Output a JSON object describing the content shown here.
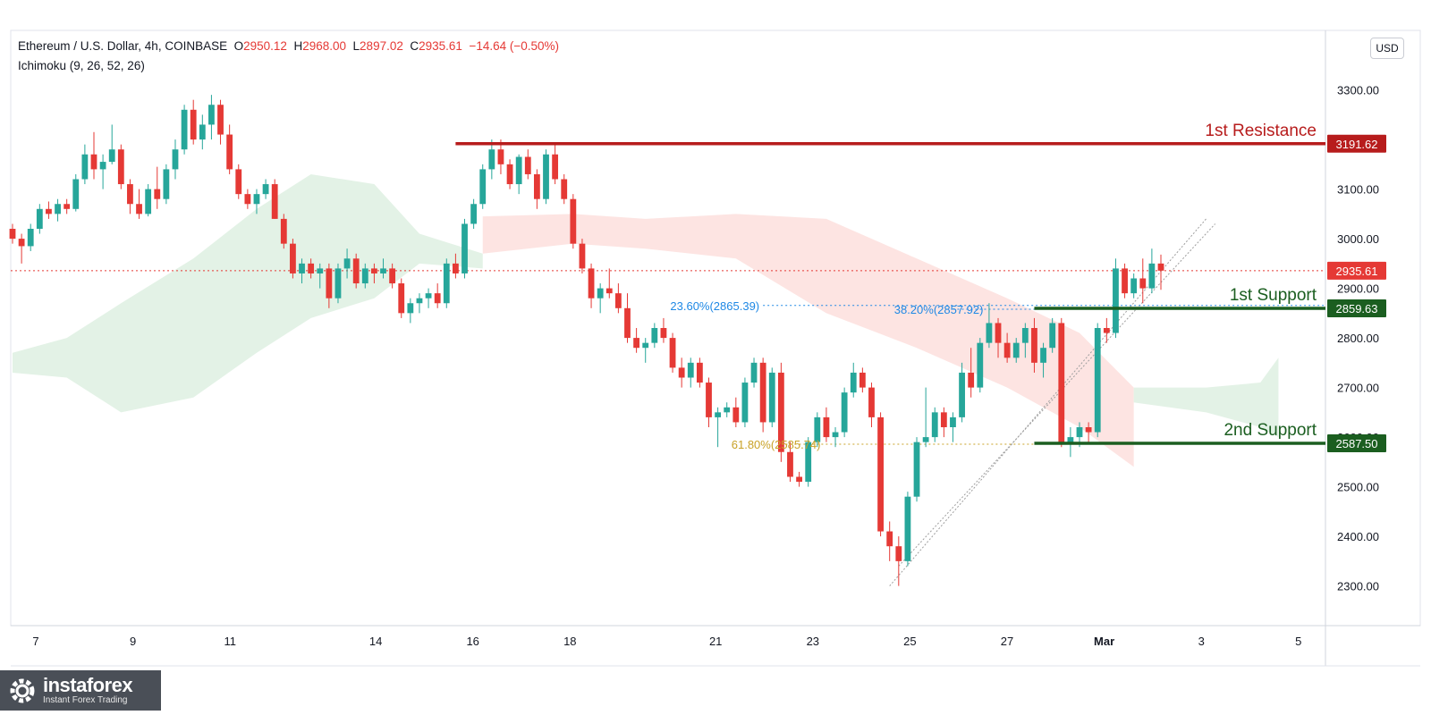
{
  "header": {
    "symbol": "Ethereum / U.S. Dollar, 4h, COINBASE",
    "o_label": "O",
    "o": "2950.12",
    "h_label": "H",
    "h": "2968.00",
    "l_label": "L",
    "l": "2897.02",
    "c_label": "C",
    "c": "2935.61",
    "change": "−14.64 (−0.50%)",
    "indicator": "Ichimoku (9, 26, 52, 26)"
  },
  "currency_button": "USD",
  "logo": {
    "brand": "instaforex",
    "tagline": "Instant Forex Trading"
  },
  "chart_data": {
    "type": "candlestick",
    "y_ticks": [
      "3300.00",
      "3200.00",
      "3100.00",
      "3000.00",
      "2900.00",
      "2800.00",
      "2700.00",
      "2600.00",
      "2500.00",
      "2400.00",
      "2300.00"
    ],
    "y_range": [
      2220,
      3420
    ],
    "x_ticks": [
      {
        "label": "7",
        "day": 7
      },
      {
        "label": "9",
        "day": 9
      },
      {
        "label": "11",
        "day": 11
      },
      {
        "label": "14",
        "day": 14
      },
      {
        "label": "16",
        "day": 16
      },
      {
        "label": "18",
        "day": 18
      },
      {
        "label": "21",
        "day": 21
      },
      {
        "label": "23",
        "day": 23
      },
      {
        "label": "25",
        "day": 25
      },
      {
        "label": "27",
        "day": 27
      },
      {
        "label": "Mar",
        "day": 29
      },
      {
        "label": "3",
        "day": 31
      },
      {
        "label": "5",
        "day": 33
      }
    ],
    "levels": [
      {
        "name": "1st Resistance",
        "value": 3191.62,
        "label": "3191.62",
        "color": "#b71c1c"
      },
      {
        "name": "1st Support",
        "value": 2859.63,
        "label": "2859.63",
        "color": "#1b5e20"
      },
      {
        "name": "2nd Support",
        "value": 2587.5,
        "label": "2587.50",
        "color": "#1b5e20"
      }
    ],
    "last_price": {
      "value": 2935.61,
      "label": "2935.61",
      "color": "#e53935"
    },
    "fibonacci": [
      {
        "label": "23.60%(2865.39)",
        "value": 2865.39,
        "color": "#1e88e5"
      },
      {
        "label": "38.20%(2857.92)",
        "value": 2857.92,
        "color": "#1e88e5"
      },
      {
        "label": "61.80%(2585.74)",
        "value": 2585.74,
        "color": "#c9a227"
      }
    ],
    "colors": {
      "up": "#26a69a",
      "down": "#e53935",
      "cloud_bull": "#e3f2e6",
      "cloud_bear": "#fde4e2"
    },
    "candles": [
      [
        3020,
        3030,
        2990,
        3000
      ],
      [
        3000,
        3010,
        2950,
        2985
      ],
      [
        2985,
        3030,
        2975,
        3020
      ],
      [
        3020,
        3070,
        3010,
        3060
      ],
      [
        3060,
        3075,
        3040,
        3050
      ],
      [
        3050,
        3080,
        3035,
        3070
      ],
      [
        3070,
        3080,
        3050,
        3060
      ],
      [
        3060,
        3130,
        3055,
        3120
      ],
      [
        3120,
        3190,
        3110,
        3170
      ],
      [
        3170,
        3215,
        3120,
        3140
      ],
      [
        3140,
        3170,
        3100,
        3155
      ],
      [
        3155,
        3230,
        3150,
        3180
      ],
      [
        3180,
        3190,
        3100,
        3110
      ],
      [
        3110,
        3120,
        3050,
        3070
      ],
      [
        3070,
        3100,
        3040,
        3050
      ],
      [
        3050,
        3110,
        3045,
        3100
      ],
      [
        3100,
        3145,
        3060,
        3080
      ],
      [
        3080,
        3150,
        3070,
        3140
      ],
      [
        3140,
        3200,
        3120,
        3180
      ],
      [
        3180,
        3270,
        3170,
        3260
      ],
      [
        3260,
        3280,
        3190,
        3200
      ],
      [
        3200,
        3250,
        3180,
        3230
      ],
      [
        3230,
        3290,
        3200,
        3270
      ],
      [
        3270,
        3280,
        3190,
        3210
      ],
      [
        3210,
        3230,
        3130,
        3140
      ],
      [
        3140,
        3150,
        3080,
        3090
      ],
      [
        3090,
        3100,
        3060,
        3070
      ],
      [
        3070,
        3100,
        3050,
        3090
      ],
      [
        3090,
        3120,
        3080,
        3110
      ],
      [
        3110,
        3120,
        3040,
        3040
      ],
      [
        3040,
        3050,
        2980,
        2990
      ],
      [
        2990,
        3000,
        2920,
        2930
      ],
      [
        2930,
        2960,
        2910,
        2950
      ],
      [
        2950,
        2960,
        2920,
        2930
      ],
      [
        2930,
        2950,
        2900,
        2940
      ],
      [
        2940,
        2950,
        2860,
        2880
      ],
      [
        2880,
        2950,
        2870,
        2940
      ],
      [
        2940,
        2980,
        2920,
        2960
      ],
      [
        2960,
        2970,
        2900,
        2910
      ],
      [
        2910,
        2950,
        2900,
        2940
      ],
      [
        2940,
        2950,
        2910,
        2930
      ],
      [
        2930,
        2960,
        2920,
        2940
      ],
      [
        2940,
        2950,
        2900,
        2910
      ],
      [
        2910,
        2920,
        2840,
        2850
      ],
      [
        2850,
        2880,
        2830,
        2870
      ],
      [
        2870,
        2890,
        2850,
        2880
      ],
      [
        2880,
        2900,
        2860,
        2890
      ],
      [
        2890,
        2910,
        2860,
        2870
      ],
      [
        2870,
        2960,
        2860,
        2950
      ],
      [
        2950,
        2970,
        2920,
        2930
      ],
      [
        2930,
        3040,
        2920,
        3030
      ],
      [
        3030,
        3080,
        3020,
        3070
      ],
      [
        3070,
        3150,
        3060,
        3140
      ],
      [
        3140,
        3200,
        3120,
        3180
      ],
      [
        3180,
        3200,
        3130,
        3150
      ],
      [
        3150,
        3160,
        3100,
        3110
      ],
      [
        3110,
        3170,
        3090,
        3165
      ],
      [
        3165,
        3180,
        3120,
        3130
      ],
      [
        3130,
        3140,
        3060,
        3080
      ],
      [
        3080,
        3180,
        3070,
        3170
      ],
      [
        3170,
        3190,
        3110,
        3120
      ],
      [
        3120,
        3130,
        3070,
        3080
      ],
      [
        3080,
        3090,
        2980,
        2990
      ],
      [
        2990,
        3000,
        2930,
        2940
      ],
      [
        2940,
        2950,
        2860,
        2880
      ],
      [
        2880,
        2910,
        2850,
        2900
      ],
      [
        2900,
        2940,
        2880,
        2890
      ],
      [
        2890,
        2910,
        2850,
        2860
      ],
      [
        2860,
        2890,
        2790,
        2800
      ],
      [
        2800,
        2820,
        2770,
        2780
      ],
      [
        2780,
        2800,
        2750,
        2790
      ],
      [
        2790,
        2830,
        2780,
        2820
      ],
      [
        2820,
        2840,
        2790,
        2800
      ],
      [
        2800,
        2810,
        2730,
        2740
      ],
      [
        2740,
        2760,
        2700,
        2720
      ],
      [
        2720,
        2760,
        2700,
        2750
      ],
      [
        2750,
        2760,
        2700,
        2710
      ],
      [
        2710,
        2720,
        2620,
        2640
      ],
      [
        2640,
        2660,
        2580,
        2650
      ],
      [
        2650,
        2670,
        2640,
        2660
      ],
      [
        2660,
        2680,
        2620,
        2630
      ],
      [
        2630,
        2720,
        2620,
        2710
      ],
      [
        2710,
        2760,
        2700,
        2750
      ],
      [
        2750,
        2760,
        2610,
        2630
      ],
      [
        2630,
        2740,
        2620,
        2730
      ],
      [
        2730,
        2750,
        2550,
        2570
      ],
      [
        2570,
        2590,
        2510,
        2520
      ],
      [
        2520,
        2530,
        2500,
        2510
      ],
      [
        2510,
        2600,
        2500,
        2590
      ],
      [
        2590,
        2650,
        2580,
        2640
      ],
      [
        2640,
        2660,
        2590,
        2600
      ],
      [
        2600,
        2620,
        2580,
        2610
      ],
      [
        2610,
        2700,
        2600,
        2690
      ],
      [
        2690,
        2750,
        2680,
        2730
      ],
      [
        2730,
        2740,
        2690,
        2700
      ],
      [
        2700,
        2710,
        2620,
        2640
      ],
      [
        2640,
        2650,
        2400,
        2410
      ],
      [
        2410,
        2430,
        2350,
        2380
      ],
      [
        2380,
        2400,
        2300,
        2350
      ],
      [
        2350,
        2490,
        2340,
        2480
      ],
      [
        2480,
        2600,
        2470,
        2590
      ],
      [
        2590,
        2700,
        2580,
        2600
      ],
      [
        2600,
        2660,
        2590,
        2650
      ],
      [
        2650,
        2660,
        2600,
        2620
      ],
      [
        2620,
        2650,
        2590,
        2640
      ],
      [
        2640,
        2750,
        2630,
        2730
      ],
      [
        2730,
        2780,
        2680,
        2700
      ],
      [
        2700,
        2800,
        2690,
        2790
      ],
      [
        2790,
        2870,
        2780,
        2830
      ],
      [
        2830,
        2840,
        2760,
        2790
      ],
      [
        2790,
        2810,
        2750,
        2760
      ],
      [
        2760,
        2800,
        2750,
        2790
      ],
      [
        2790,
        2830,
        2760,
        2820
      ],
      [
        2820,
        2840,
        2730,
        2750
      ],
      [
        2750,
        2790,
        2720,
        2780
      ],
      [
        2780,
        2840,
        2770,
        2830
      ],
      [
        2830,
        2840,
        2580,
        2590
      ],
      [
        2590,
        2620,
        2560,
        2600
      ],
      [
        2600,
        2630,
        2580,
        2620
      ],
      [
        2620,
        2630,
        2590,
        2610
      ],
      [
        2610,
        2830,
        2600,
        2820
      ],
      [
        2820,
        2840,
        2790,
        2810
      ],
      [
        2810,
        2960,
        2800,
        2940
      ],
      [
        2940,
        2950,
        2880,
        2890
      ],
      [
        2890,
        2930,
        2880,
        2920
      ],
      [
        2920,
        2960,
        2870,
        2900
      ],
      [
        2900,
        2980,
        2890,
        2950
      ],
      [
        2950,
        2968,
        2897,
        2935.61
      ]
    ],
    "cloud": {
      "bull_upper": [
        [
          0,
          2770
        ],
        [
          6,
          2800
        ],
        [
          12,
          2870
        ],
        [
          20,
          2960
        ],
        [
          27,
          3060
        ],
        [
          33,
          3130
        ],
        [
          40,
          3110
        ],
        [
          45,
          3010
        ],
        [
          52,
          2970
        ]
      ],
      "bull_lower": [
        [
          0,
          2730
        ],
        [
          6,
          2720
        ],
        [
          12,
          2650
        ],
        [
          20,
          2680
        ],
        [
          27,
          2770
        ],
        [
          33,
          2840
        ],
        [
          40,
          2880
        ],
        [
          45,
          2950
        ],
        [
          52,
          2940
        ]
      ],
      "bear_upper": [
        [
          52,
          3045
        ],
        [
          62,
          3050
        ],
        [
          70,
          3040
        ],
        [
          80,
          3050
        ],
        [
          90,
          3040
        ],
        [
          100,
          2960
        ],
        [
          110,
          2880
        ],
        [
          118,
          2810
        ],
        [
          124,
          2700
        ]
      ],
      "bear_lower": [
        [
          52,
          2970
        ],
        [
          62,
          2990
        ],
        [
          70,
          2980
        ],
        [
          80,
          2960
        ],
        [
          90,
          2850
        ],
        [
          100,
          2780
        ],
        [
          110,
          2700
        ],
        [
          118,
          2620
        ],
        [
          124,
          2540
        ]
      ],
      "bull2_upper": [
        [
          124,
          2700
        ],
        [
          132,
          2700
        ],
        [
          138,
          2710
        ],
        [
          140,
          2760
        ]
      ],
      "bull2_lower": [
        [
          124,
          2670
        ],
        [
          132,
          2650
        ],
        [
          138,
          2620
        ],
        [
          140,
          2600
        ]
      ]
    }
  }
}
